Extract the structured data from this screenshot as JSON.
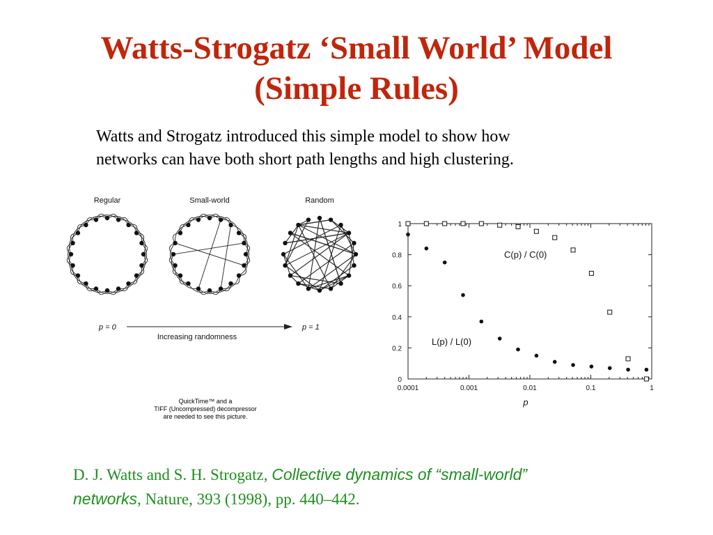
{
  "slide": {
    "title_line1": "Watts-Strogatz ‘Small World’ Model",
    "title_line2": "(Simple Rules)",
    "intro_line1": "Watts and Strogatz introduced this simple model to show how",
    "intro_line2": "networks can have both short path lengths and high clustering.",
    "colors": {
      "title": "#c0260b",
      "citation": "#1e8e1e"
    }
  },
  "networks": {
    "labels": [
      "Regular",
      "Small-world",
      "Random"
    ],
    "p_start": "p = 0",
    "p_end": "p = 1",
    "arrow_label": "Increasing randomness"
  },
  "quicktime": {
    "line1": "QuickTime™ and a",
    "line2": "TIFF (Uncompressed) decompressor",
    "line3": "are needed to see this picture."
  },
  "chart_data": {
    "type": "scatter",
    "xlabel": "p",
    "x_scale": "log",
    "xlim": [
      0.0001,
      1
    ],
    "ylim": [
      0,
      1
    ],
    "x_ticks": [
      "0.0001",
      "0.001",
      "0.01",
      "0.1",
      "1"
    ],
    "y_ticks": [
      "0",
      "0.2",
      "0.4",
      "0.6",
      "0.8",
      "1"
    ],
    "series": [
      {
        "name": "C(p) / C(0)",
        "marker": "open-square",
        "points": [
          [
            0.0001,
            1.0
          ],
          [
            0.0002,
            1.0
          ],
          [
            0.0004,
            1.0
          ],
          [
            0.0008,
            1.0
          ],
          [
            0.0016,
            1.0
          ],
          [
            0.0032,
            0.99
          ],
          [
            0.0064,
            0.98
          ],
          [
            0.0128,
            0.95
          ],
          [
            0.0256,
            0.91
          ],
          [
            0.0512,
            0.83
          ],
          [
            0.1024,
            0.68
          ],
          [
            0.2048,
            0.43
          ],
          [
            0.4096,
            0.13
          ],
          [
            0.8192,
            0.0
          ]
        ]
      },
      {
        "name": "L(p) / L(0)",
        "marker": "filled-circle",
        "points": [
          [
            0.0001,
            0.93
          ],
          [
            0.0002,
            0.84
          ],
          [
            0.0004,
            0.75
          ],
          [
            0.0008,
            0.54
          ],
          [
            0.0016,
            0.37
          ],
          [
            0.0032,
            0.26
          ],
          [
            0.0064,
            0.19
          ],
          [
            0.0128,
            0.15
          ],
          [
            0.0256,
            0.11
          ],
          [
            0.0512,
            0.09
          ],
          [
            0.1024,
            0.08
          ],
          [
            0.2048,
            0.07
          ],
          [
            0.4096,
            0.06
          ],
          [
            0.8192,
            0.06
          ]
        ]
      }
    ]
  },
  "citation": {
    "authors": "D. J. Watts and S. H. Strogatz, ",
    "title_part1": "Collective dynamics of “small-world”",
    "title_part2": "networks",
    "rest": ", Nature, 393 (1998), pp. 440–442."
  }
}
